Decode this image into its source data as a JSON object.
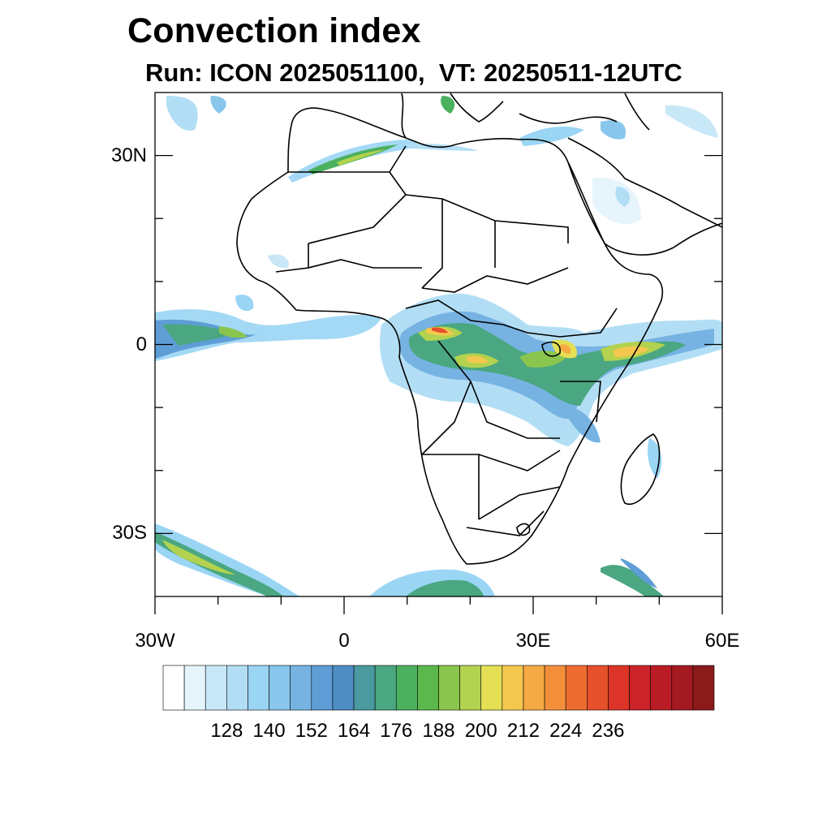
{
  "title": "Convection index",
  "subtitle": "Run: ICON 2025051100,  VT: 20250511-12UTC",
  "map": {
    "lon_range": [
      -30,
      60
    ],
    "lat_range": [
      -40,
      40
    ],
    "lat_ticks": [
      {
        "value": 30,
        "label": "30N"
      },
      {
        "value": 0,
        "label": "0"
      },
      {
        "value": -30,
        "label": "30S"
      }
    ],
    "lon_ticks": [
      {
        "value": -30,
        "label": "30W"
      },
      {
        "value": 0,
        "label": "0"
      },
      {
        "value": 30,
        "label": "30E"
      },
      {
        "value": 60,
        "label": "60E"
      }
    ]
  },
  "colorbar": {
    "colors": [
      "#ffffff",
      "#e6f4fc",
      "#c9e8f7",
      "#b2def5",
      "#9ad5f4",
      "#88c6ec",
      "#76b3e3",
      "#5e9dd6",
      "#4e8dc3",
      "#4a9aa0",
      "#4aa781",
      "#4cb15f",
      "#5cb84d",
      "#8ac64d",
      "#b3d24f",
      "#e5df55",
      "#f4c84f",
      "#f5aa44",
      "#f38f3b",
      "#ee6c31",
      "#e6502b",
      "#dc3429",
      "#cc2328",
      "#b91c25",
      "#a31a21",
      "#8b1a1a"
    ],
    "labels": [
      "128",
      "140",
      "152",
      "164",
      "176",
      "188",
      "200",
      "212",
      "224",
      "236"
    ]
  }
}
